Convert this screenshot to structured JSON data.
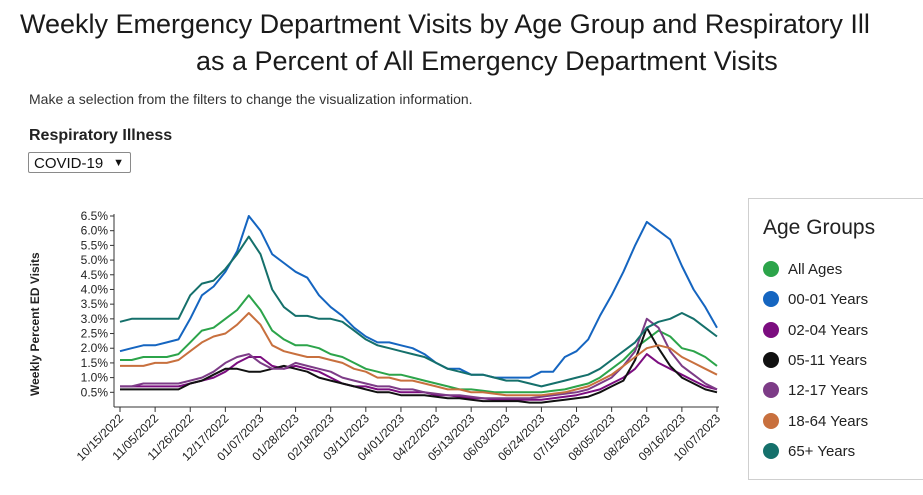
{
  "title_line1": "Weekly Emergency Department Visits by Age Group and Respiratory Ill",
  "title_line2": "as a Percent of All Emergency Department Visits",
  "instructions": "Make a selection from the filters to change the visualization information.",
  "filter": {
    "label": "Respiratory Illness",
    "selected": "COVID-19"
  },
  "legend_title": "Age Groups",
  "chart_data": {
    "type": "line",
    "ylabel": "Weekly Percent ED Visits",
    "ylim": [
      0.0,
      6.5
    ],
    "yticks": [
      "0.5%",
      "1.0%",
      "1.5%",
      "2.0%",
      "2.5%",
      "3.0%",
      "3.5%",
      "4.0%",
      "4.5%",
      "5.0%",
      "5.5%",
      "6.0%",
      "6.5%"
    ],
    "xtick_labels": [
      "10/15/2022",
      "11/05/2022",
      "11/26/2022",
      "12/17/2022",
      "01/07/2023",
      "01/28/2023",
      "02/18/2023",
      "03/11/2023",
      "04/01/2023",
      "04/22/2023",
      "05/13/2023",
      "06/03/2023",
      "06/24/2023",
      "07/15/2023",
      "08/05/2023",
      "08/26/2023",
      "09/16/2023",
      "10/07/2023"
    ],
    "grid": false,
    "legend_position": "right",
    "x_weeks": [
      "10/15/2022",
      "10/22/2022",
      "10/29/2022",
      "11/05/2022",
      "11/12/2022",
      "11/19/2022",
      "11/26/2022",
      "12/03/2022",
      "12/10/2022",
      "12/17/2022",
      "12/24/2022",
      "12/31/2022",
      "01/07/2023",
      "01/14/2023",
      "01/21/2023",
      "01/28/2023",
      "02/04/2023",
      "02/11/2023",
      "02/18/2023",
      "02/25/2023",
      "03/04/2023",
      "03/11/2023",
      "03/18/2023",
      "03/25/2023",
      "04/01/2023",
      "04/08/2023",
      "04/15/2023",
      "04/22/2023",
      "04/29/2023",
      "05/06/2023",
      "05/13/2023",
      "05/20/2023",
      "05/27/2023",
      "06/03/2023",
      "06/10/2023",
      "06/17/2023",
      "06/24/2023",
      "07/01/2023",
      "07/08/2023",
      "07/15/2023",
      "07/22/2023",
      "07/29/2023",
      "08/05/2023",
      "08/12/2023",
      "08/19/2023",
      "08/26/2023",
      "09/02/2023",
      "09/09/2023",
      "09/16/2023",
      "09/23/2023",
      "09/30/2023",
      "10/07/2023"
    ],
    "series": [
      {
        "name": "All Ages",
        "color": "#2ca44a",
        "values": [
          1.6,
          1.6,
          1.7,
          1.7,
          1.7,
          1.8,
          2.2,
          2.6,
          2.7,
          3.0,
          3.3,
          3.8,
          3.3,
          2.6,
          2.3,
          2.1,
          2.1,
          2.0,
          1.8,
          1.7,
          1.5,
          1.3,
          1.2,
          1.1,
          1.1,
          1.0,
          0.9,
          0.8,
          0.7,
          0.6,
          0.6,
          0.55,
          0.5,
          0.5,
          0.5,
          0.5,
          0.5,
          0.55,
          0.6,
          0.7,
          0.8,
          1.0,
          1.3,
          1.6,
          2.0,
          2.3,
          2.6,
          2.4,
          2.0,
          1.9,
          1.7,
          1.4
        ]
      },
      {
        "name": "00-01 Years",
        "color": "#1565c0",
        "values": [
          1.9,
          2.0,
          2.1,
          2.1,
          2.2,
          2.3,
          3.0,
          3.8,
          4.1,
          4.6,
          5.3,
          6.5,
          6.0,
          5.2,
          4.9,
          4.6,
          4.4,
          3.8,
          3.4,
          3.1,
          2.7,
          2.4,
          2.2,
          2.2,
          2.1,
          2.0,
          1.8,
          1.5,
          1.3,
          1.3,
          1.1,
          1.1,
          1.0,
          1.0,
          1.0,
          1.0,
          1.2,
          1.2,
          1.7,
          1.9,
          2.3,
          3.1,
          3.8,
          4.6,
          5.5,
          6.3,
          6.0,
          5.7,
          4.8,
          4.0,
          3.4,
          2.7
        ]
      },
      {
        "name": "02-04 Years",
        "color": "#7b0d7f",
        "values": [
          0.7,
          0.7,
          0.7,
          0.7,
          0.7,
          0.7,
          0.8,
          0.9,
          1.0,
          1.2,
          1.5,
          1.7,
          1.7,
          1.4,
          1.3,
          1.4,
          1.3,
          1.2,
          1.0,
          0.8,
          0.7,
          0.7,
          0.6,
          0.6,
          0.5,
          0.5,
          0.5,
          0.4,
          0.4,
          0.35,
          0.3,
          0.3,
          0.25,
          0.25,
          0.25,
          0.25,
          0.25,
          0.3,
          0.35,
          0.4,
          0.5,
          0.6,
          0.8,
          1.0,
          1.3,
          1.8,
          1.5,
          1.3,
          1.1,
          0.9,
          0.7,
          0.6
        ]
      },
      {
        "name": "05-11 Years",
        "color": "#111111",
        "values": [
          0.6,
          0.6,
          0.6,
          0.6,
          0.6,
          0.6,
          0.8,
          0.9,
          1.1,
          1.3,
          1.3,
          1.2,
          1.2,
          1.3,
          1.4,
          1.3,
          1.2,
          1.0,
          0.9,
          0.8,
          0.7,
          0.6,
          0.5,
          0.5,
          0.4,
          0.4,
          0.4,
          0.35,
          0.3,
          0.3,
          0.25,
          0.2,
          0.2,
          0.2,
          0.2,
          0.15,
          0.15,
          0.2,
          0.25,
          0.3,
          0.35,
          0.5,
          0.7,
          0.9,
          1.6,
          2.7,
          2.0,
          1.4,
          1.0,
          0.8,
          0.6,
          0.5
        ]
      },
      {
        "name": "12-17 Years",
        "color": "#7d3c87",
        "values": [
          0.7,
          0.7,
          0.8,
          0.8,
          0.8,
          0.8,
          0.9,
          1.0,
          1.2,
          1.5,
          1.7,
          1.8,
          1.5,
          1.3,
          1.3,
          1.5,
          1.4,
          1.3,
          1.2,
          1.0,
          0.9,
          0.8,
          0.7,
          0.7,
          0.6,
          0.6,
          0.5,
          0.45,
          0.4,
          0.4,
          0.35,
          0.3,
          0.3,
          0.3,
          0.3,
          0.3,
          0.35,
          0.4,
          0.45,
          0.5,
          0.6,
          0.8,
          1.0,
          1.4,
          1.9,
          3.0,
          2.7,
          1.9,
          1.4,
          1.1,
          0.8,
          0.6
        ]
      },
      {
        "name": "18-64 Years",
        "color": "#c8703e",
        "values": [
          1.4,
          1.4,
          1.4,
          1.5,
          1.5,
          1.6,
          1.9,
          2.2,
          2.4,
          2.5,
          2.8,
          3.2,
          2.8,
          2.1,
          1.9,
          1.8,
          1.7,
          1.7,
          1.6,
          1.5,
          1.3,
          1.2,
          1.0,
          1.0,
          0.9,
          0.9,
          0.8,
          0.7,
          0.6,
          0.6,
          0.5,
          0.5,
          0.45,
          0.4,
          0.4,
          0.4,
          0.4,
          0.45,
          0.5,
          0.6,
          0.7,
          0.9,
          1.1,
          1.4,
          1.7,
          2.0,
          2.1,
          2.0,
          1.7,
          1.5,
          1.3,
          1.1
        ]
      },
      {
        "name": "65+ Years",
        "color": "#15706b",
        "values": [
          2.9,
          3.0,
          3.0,
          3.0,
          3.0,
          3.0,
          3.8,
          4.2,
          4.3,
          4.7,
          5.2,
          5.8,
          5.2,
          4.0,
          3.4,
          3.1,
          3.1,
          3.0,
          3.0,
          2.9,
          2.6,
          2.3,
          2.1,
          2.0,
          1.9,
          1.8,
          1.7,
          1.5,
          1.3,
          1.2,
          1.1,
          1.1,
          1.0,
          0.9,
          0.9,
          0.8,
          0.7,
          0.8,
          0.9,
          1.0,
          1.1,
          1.3,
          1.6,
          1.9,
          2.2,
          2.7,
          2.9,
          3.0,
          3.2,
          3.0,
          2.7,
          2.4
        ]
      }
    ]
  }
}
